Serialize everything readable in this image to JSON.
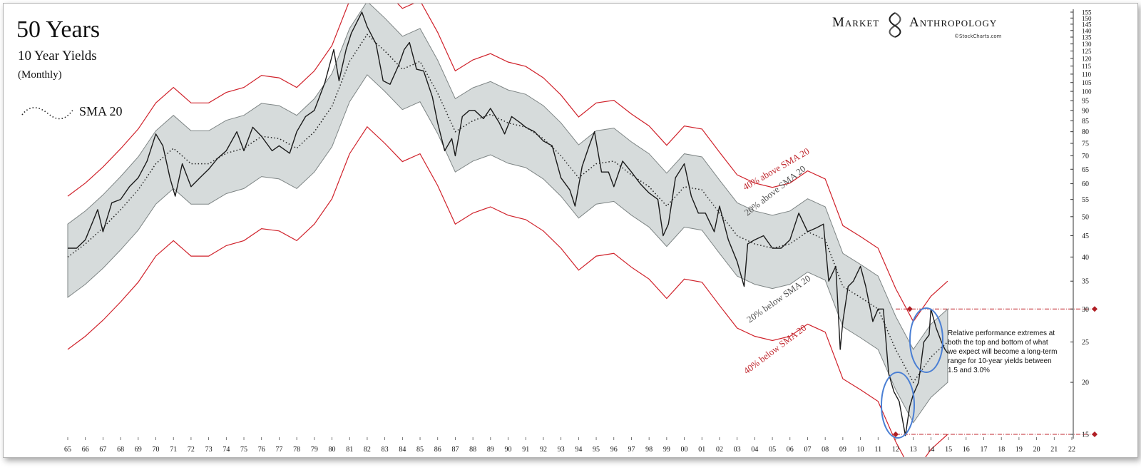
{
  "chart_data": {
    "type": "line",
    "title": "50 Years",
    "subtitle": "10 Year Yields",
    "frequency": "(Monthly)",
    "legend": [
      {
        "label": "SMA 20",
        "style": "dotted"
      }
    ],
    "brand": {
      "name_part1": "Market",
      "name_part2": "Anthropology",
      "source": "©StockCharts.com"
    },
    "x_tick_labels": [
      "65",
      "66",
      "67",
      "68",
      "69",
      "70",
      "71",
      "72",
      "73",
      "74",
      "75",
      "76",
      "77",
      "78",
      "79",
      "80",
      "81",
      "82",
      "83",
      "84",
      "85",
      "86",
      "87",
      "88",
      "89",
      "90",
      "91",
      "92",
      "93",
      "94",
      "95",
      "96",
      "97",
      "98",
      "99",
      "00",
      "01",
      "02",
      "03",
      "04",
      "05",
      "06",
      "07",
      "08",
      "09",
      "10",
      "11",
      "12",
      "13",
      "14",
      "15",
      "16",
      "17",
      "18",
      "19",
      "20",
      "21",
      "22"
    ],
    "x_range": [
      1965,
      2022
    ],
    "y_scale": "log",
    "y_unit": "yield x10",
    "y_ticks": [
      15,
      20,
      25,
      30,
      35,
      40,
      45,
      50,
      55,
      60,
      65,
      70,
      75,
      80,
      85,
      90,
      95,
      100,
      105,
      110,
      115,
      120,
      125,
      130,
      135,
      140,
      145,
      150,
      155
    ],
    "y_range": [
      15,
      155
    ],
    "band_labels": {
      "upper40": "40% above SMA 20",
      "upper20": "20% above SMA 20",
      "lower20": "20% below SMA 20",
      "lower40": "40% below SMA 20"
    },
    "annotation": "Relative performance extremes at both the top and bottom of what we expect will become a long-term range for 10-year yields between 1.5 and 3.0%",
    "reference_lines": [
      30,
      15
    ],
    "series": [
      {
        "name": "10 Year Yield (x10)",
        "x": [
          1965.0,
          1965.5,
          1966.0,
          1966.7,
          1967.0,
          1967.5,
          1968.0,
          1968.5,
          1969.0,
          1969.5,
          1970.0,
          1970.4,
          1970.8,
          1971.1,
          1971.5,
          1972.0,
          1972.5,
          1973.0,
          1973.5,
          1974.0,
          1974.6,
          1975.0,
          1975.5,
          1976.0,
          1976.6,
          1977.0,
          1977.6,
          1978.0,
          1978.5,
          1979.0,
          1979.6,
          1980.1,
          1980.4,
          1980.8,
          1981.1,
          1981.7,
          1982.0,
          1982.5,
          1982.9,
          1983.3,
          1983.8,
          1984.1,
          1984.4,
          1984.8,
          1985.2,
          1985.7,
          1986.0,
          1986.4,
          1986.8,
          1987.0,
          1987.4,
          1987.8,
          1988.1,
          1988.6,
          1989.0,
          1989.5,
          1989.8,
          1990.2,
          1990.7,
          1991.0,
          1991.5,
          1992.0,
          1992.5,
          1993.0,
          1993.5,
          1993.8,
          1994.2,
          1994.6,
          1994.9,
          1995.3,
          1995.7,
          1996.0,
          1996.5,
          1997.0,
          1997.5,
          1998.0,
          1998.5,
          1998.8,
          1999.1,
          1999.5,
          2000.0,
          2000.4,
          2000.8,
          2001.2,
          2001.7,
          2002.0,
          2002.5,
          2003.0,
          2003.4,
          2003.6,
          2004.0,
          2004.5,
          2005.0,
          2005.5,
          2006.0,
          2006.5,
          2007.0,
          2007.5,
          2007.9,
          2008.2,
          2008.6,
          2008.85,
          2009.0,
          2009.3,
          2009.6,
          2010.0,
          2010.3,
          2010.7,
          2011.0,
          2011.3,
          2011.6,
          2011.9,
          2012.2,
          2012.55,
          2012.8,
          2013.0,
          2013.3,
          2013.6,
          2013.9,
          2014.0,
          2014.3,
          2014.6,
          2014.8,
          2014.95
        ],
        "y": [
          42,
          42,
          44,
          52,
          46,
          54,
          55,
          59,
          62,
          68,
          79,
          74,
          62,
          56,
          67,
          59,
          62,
          65,
          69,
          72,
          80,
          72,
          82,
          78,
          72,
          74,
          71,
          80,
          87,
          90,
          105,
          126,
          106,
          126,
          138,
          155,
          143,
          130,
          106,
          104,
          116,
          126,
          131,
          113,
          112,
          97,
          84,
          72,
          77,
          70,
          87,
          90,
          90,
          86,
          91,
          84,
          79,
          87,
          84,
          82,
          80,
          76,
          74,
          62,
          58,
          53,
          66,
          74,
          80,
          64,
          64,
          59,
          68,
          64,
          60,
          57,
          55,
          45,
          48,
          62,
          67,
          56,
          51,
          51,
          46,
          53,
          44,
          39,
          34,
          43,
          44,
          45,
          42,
          42,
          44,
          51,
          46,
          47,
          48,
          35,
          38,
          24,
          28,
          34,
          35,
          38,
          34,
          28,
          30,
          30,
          21,
          19,
          18,
          14.9,
          17.5,
          18.7,
          20,
          25,
          26,
          30,
          27,
          25,
          24,
          23.5
        ]
      },
      {
        "name": "SMA 20",
        "style": "dotted",
        "x": [
          1965.0,
          1966.0,
          1967.0,
          1968.0,
          1969.0,
          1970.0,
          1971.0,
          1972.0,
          1973.0,
          1974.0,
          1975.0,
          1976.0,
          1977.0,
          1978.0,
          1979.0,
          1980.0,
          1981.0,
          1982.0,
          1983.0,
          1984.0,
          1985.0,
          1986.0,
          1987.0,
          1988.0,
          1989.0,
          1990.0,
          1991.0,
          1992.0,
          1993.0,
          1994.0,
          1995.0,
          1996.0,
          1997.0,
          1998.0,
          1999.0,
          2000.0,
          2001.0,
          2002.0,
          2003.0,
          2004.0,
          2005.0,
          2006.0,
          2007.0,
          2008.0,
          2009.0,
          2010.0,
          2011.0,
          2012.0,
          2013.0,
          2014.0,
          2014.95
        ],
        "y": [
          40,
          43,
          47,
          52,
          58,
          67,
          73,
          67,
          67,
          71,
          73,
          78,
          77,
          73,
          80,
          92,
          118,
          137,
          125,
          113,
          118,
          99,
          80,
          85,
          88,
          84,
          82,
          77,
          70,
          62,
          67,
          68,
          63,
          59,
          53,
          59,
          58,
          51,
          45,
          43,
          42,
          43,
          46,
          44,
          34,
          32,
          30,
          24,
          20,
          23,
          25
        ]
      }
    ]
  }
}
